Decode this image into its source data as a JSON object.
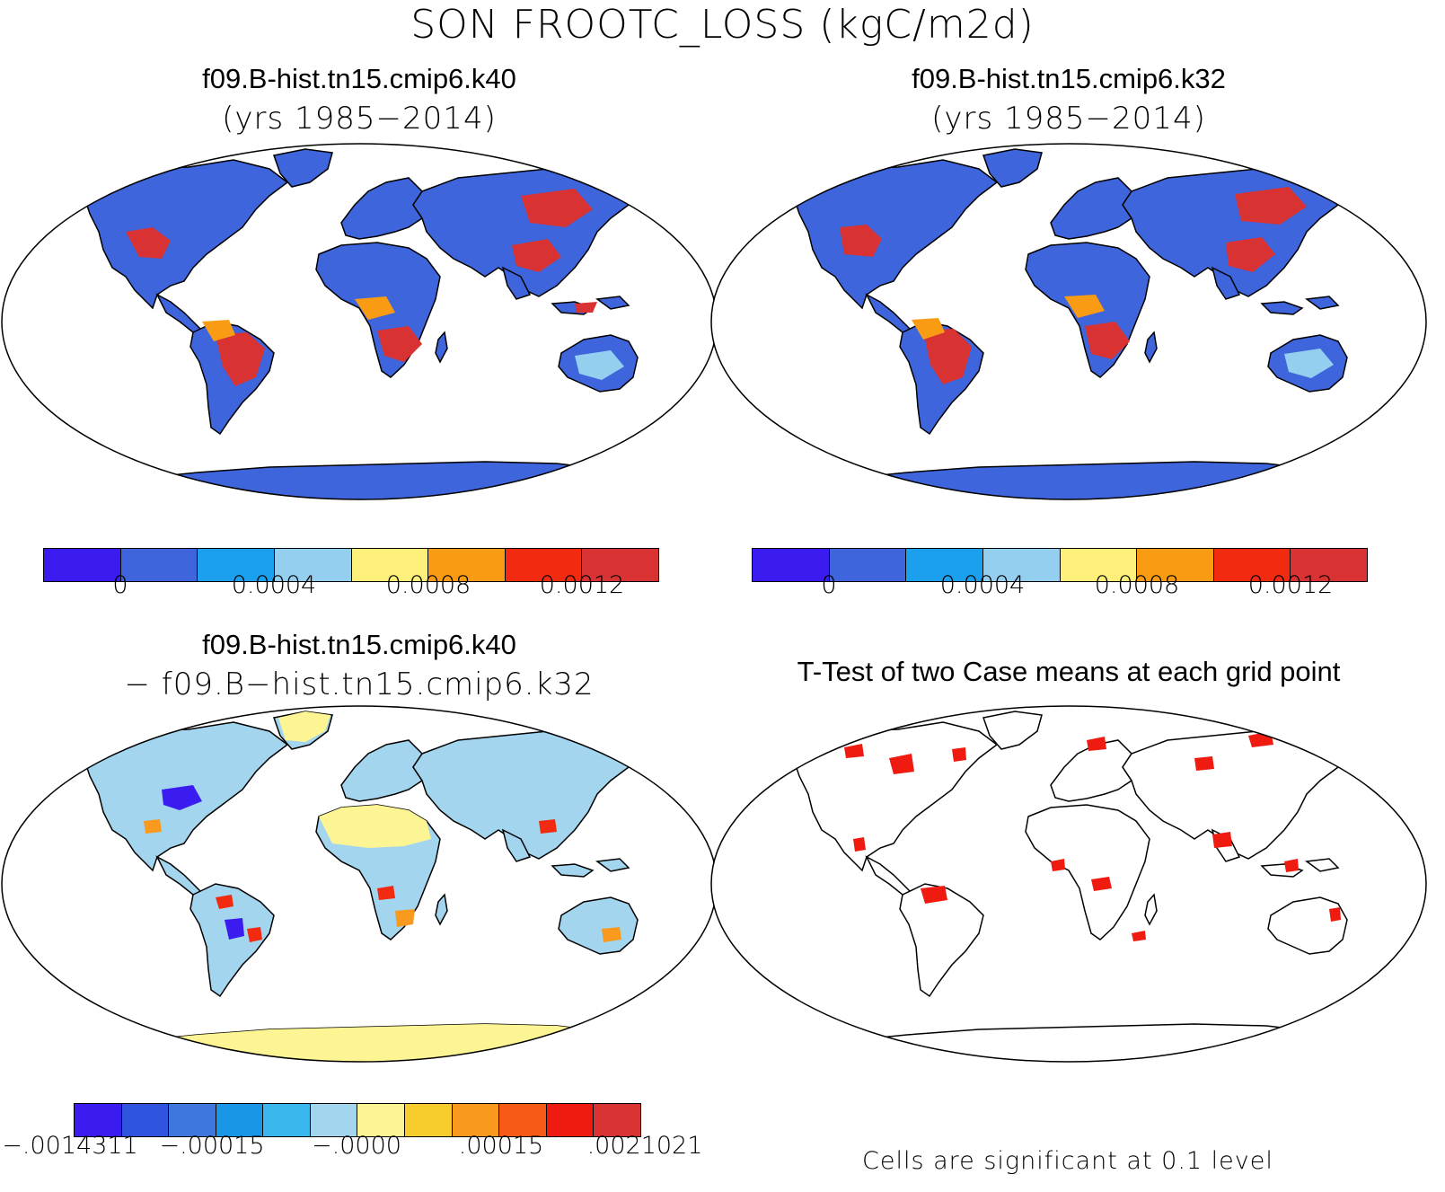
{
  "title": "SON FROOTC_LOSS (kgC/m2d)",
  "panels": [
    {
      "id": "k40",
      "title": "f09.B-hist.tn15.cmip6.k40",
      "subtitle": "(yrs 1985−2014)"
    },
    {
      "id": "k32",
      "title": "f09.B-hist.tn15.cmip6.k32",
      "subtitle": "(yrs 1985−2014)"
    },
    {
      "id": "diff",
      "title": "f09.B-hist.tn15.cmip6.k40",
      "subtitle": "− f09.B−hist.tn15.cmip6.k32"
    },
    {
      "id": "ttest",
      "title": "T-Test of two Case means at each grid point",
      "subtitle": ""
    }
  ],
  "colorbars": {
    "abs": {
      "colors": [
        "#3a1cf0",
        "#3e65db",
        "#1aa0ee",
        "#95cff0",
        "#fdf07a",
        "#f99c14",
        "#f22a10",
        "#d83232"
      ],
      "labels": [
        "0",
        "0.0004",
        "0.0008",
        "0.0012"
      ]
    },
    "diff": {
      "colors": [
        "#3a1cf0",
        "#2f55e0",
        "#3e78dc",
        "#1996e6",
        "#3ab8ee",
        "#a3d5ee",
        "#fdf493",
        "#f9cc2e",
        "#f99a1e",
        "#f65a14",
        "#ef1a10",
        "#d83232"
      ],
      "labels": [
        "−.0014311",
        "−.00015",
        "−.0000",
        ".00015",
        ".0021021"
      ]
    }
  },
  "note": "Cells are significant at 0.1 level",
  "chart_data": [
    {
      "type": "heatmap",
      "title": "f09.B-hist.tn15.cmip6.k40",
      "colorbar_ticks": [
        0,
        0.0004,
        0.0008,
        0.0012
      ]
    },
    {
      "type": "heatmap",
      "title": "f09.B-hist.tn15.cmip6.k32",
      "colorbar_ticks": [
        0,
        0.0004,
        0.0008,
        0.0012
      ]
    },
    {
      "type": "heatmap",
      "title": "f09.B-hist.tn15.cmip6.k40 − f09.B−hist.tn15.cmip6.k32",
      "colorbar_ticks": [
        -0.0014311,
        -0.00015,
        -0.0,
        0.00015,
        0.0021021
      ]
    },
    {
      "type": "heatmap",
      "title": "T-Test of two Case means at each grid point"
    }
  ]
}
